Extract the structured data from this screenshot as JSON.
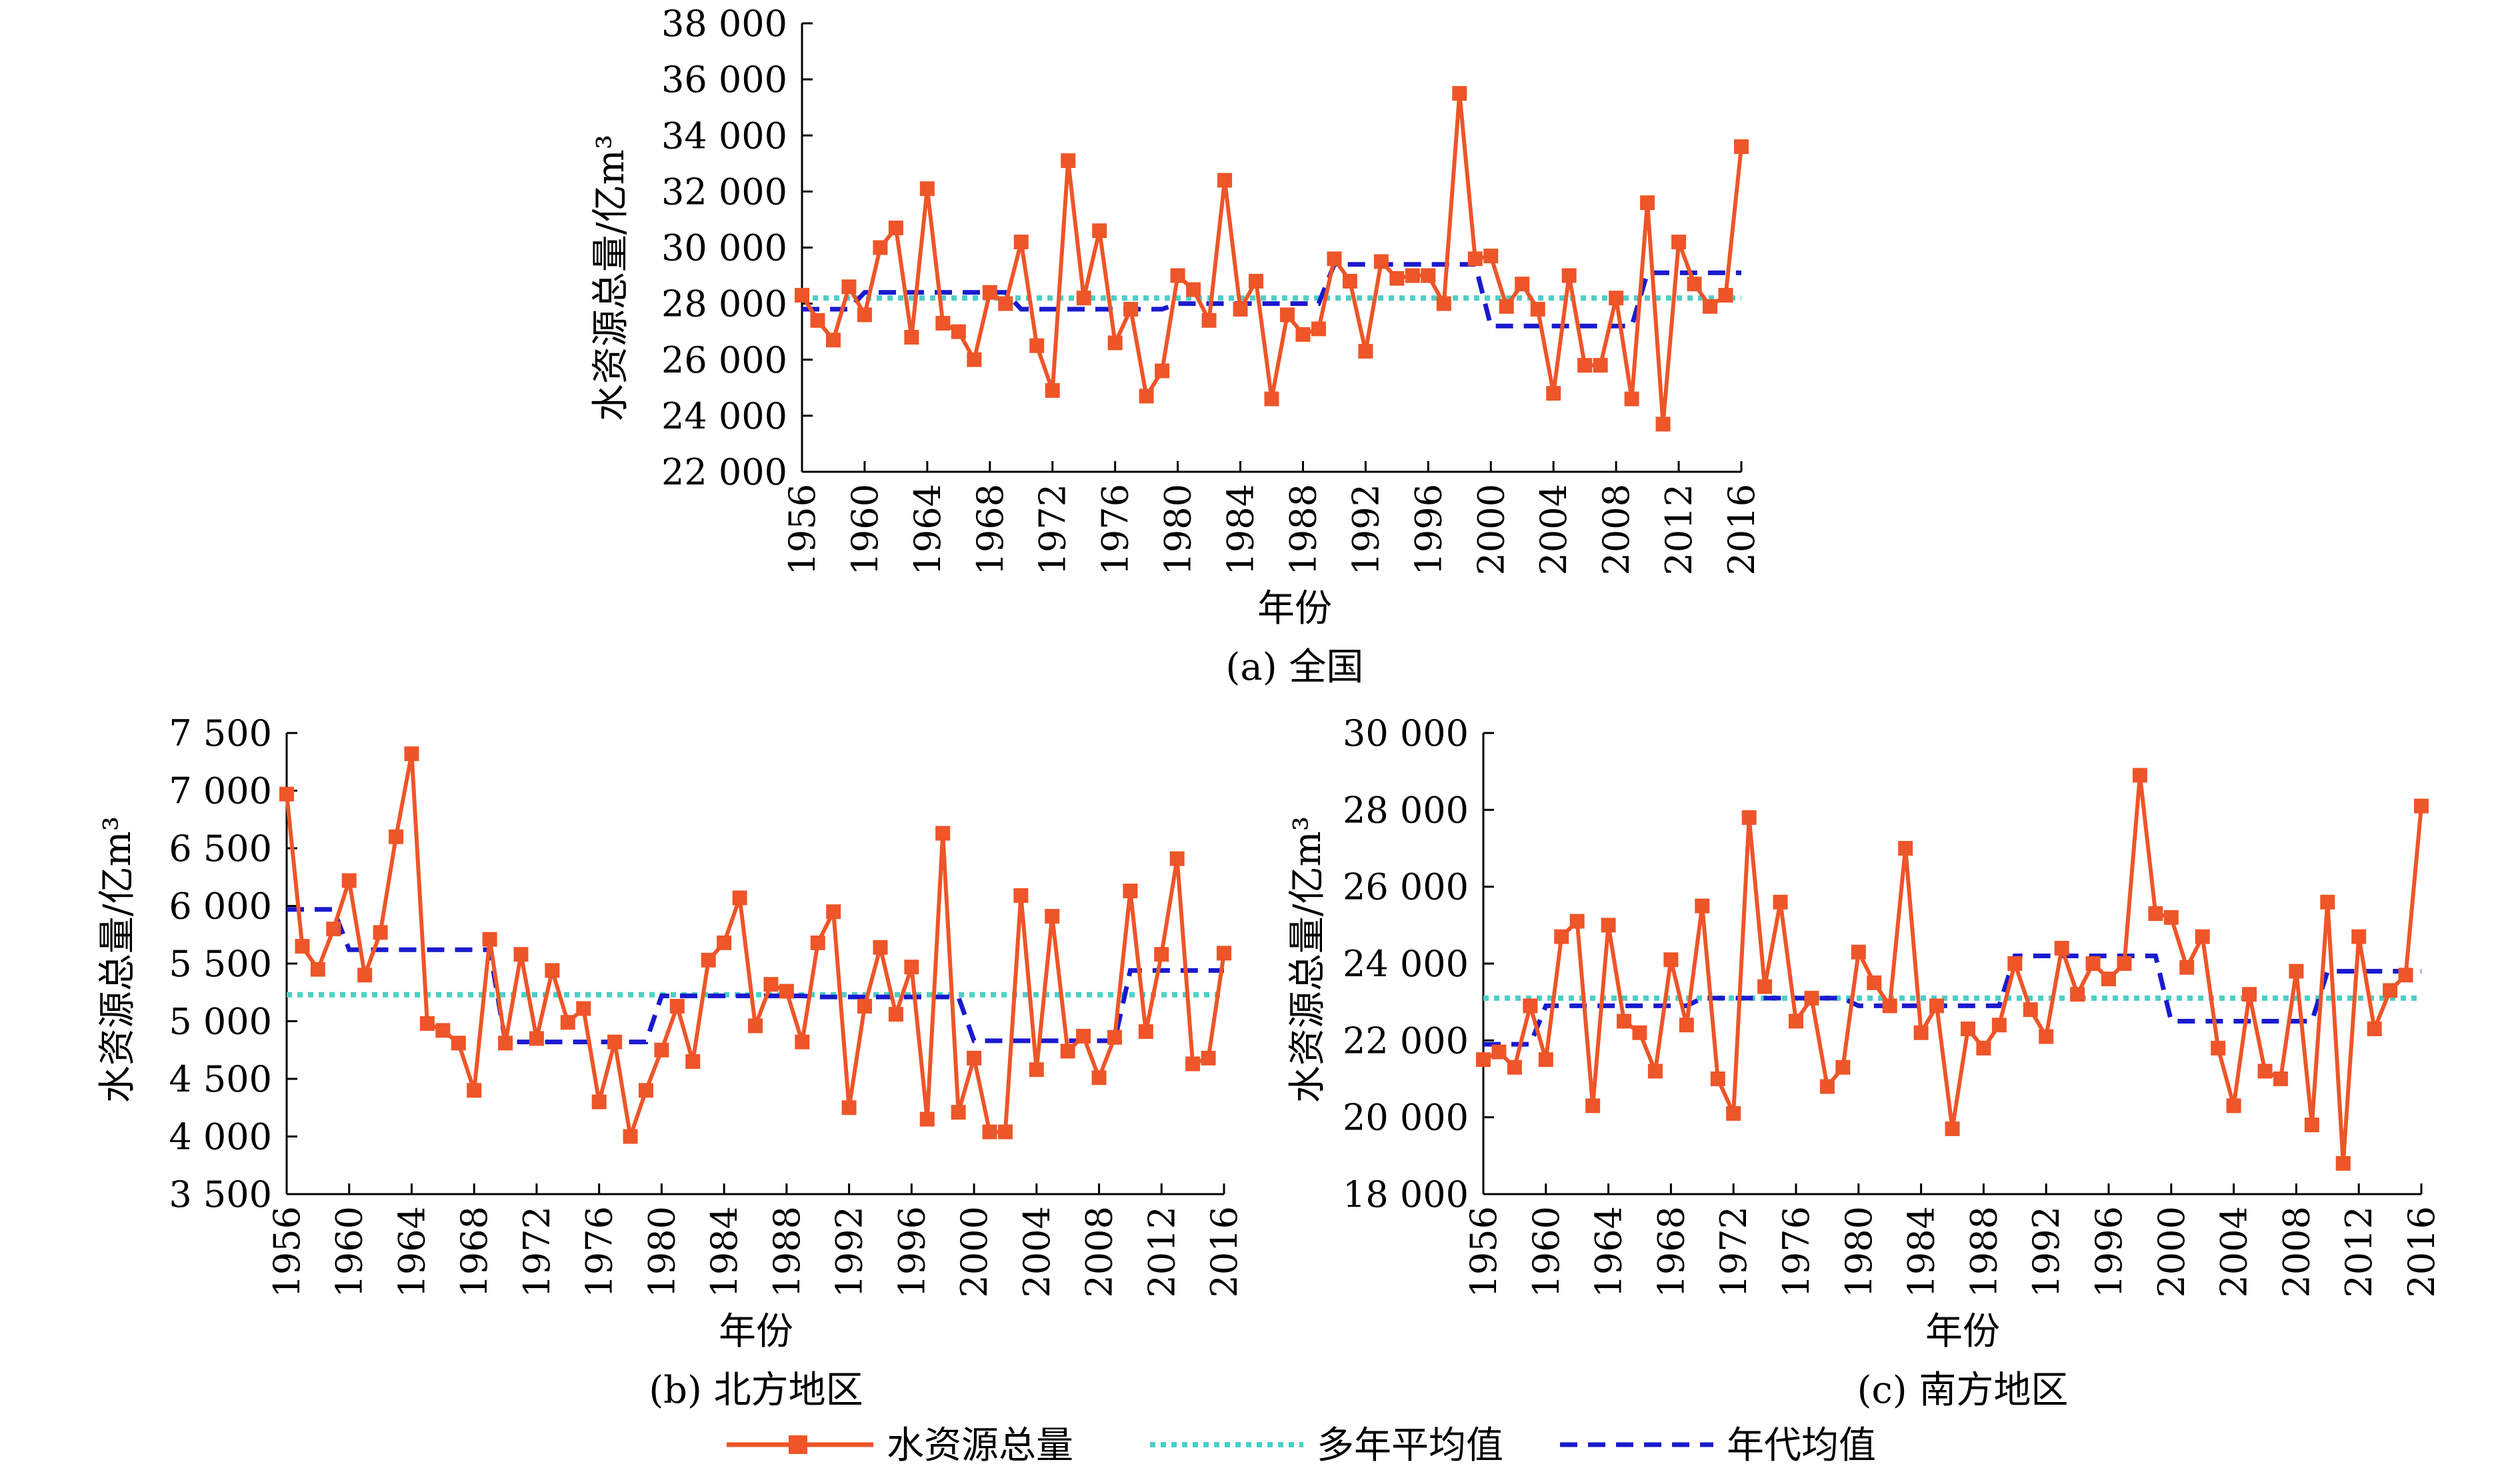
{
  "figure": {
    "legend": {
      "items": [
        {
          "label": "水资源总量",
          "color": "#EE5528",
          "style": "solid-square-markers"
        },
        {
          "label": "多年平均值",
          "color": "#4BCFC6",
          "style": "dotted"
        },
        {
          "label": "年代均值",
          "color": "#1A1ACF",
          "style": "dashed"
        }
      ]
    }
  },
  "chart_data": [
    {
      "type": "line",
      "caption": "(a) 全国",
      "xlabel": "年份",
      "ylabel": "水资源总量/亿m³",
      "xlim": [
        1956,
        2016
      ],
      "ylim": [
        22000,
        38000
      ],
      "yticks": [
        22000,
        24000,
        26000,
        28000,
        30000,
        32000,
        34000,
        36000,
        38000
      ],
      "ytick_labels": [
        "22 000",
        "24 000",
        "26 000",
        "28 000",
        "30 000",
        "32 000",
        "34 000",
        "36 000",
        "38 000"
      ],
      "xticks": [
        1956,
        1960,
        1964,
        1968,
        1972,
        1976,
        1980,
        1984,
        1988,
        1992,
        1996,
        2000,
        2004,
        2008,
        2012,
        2016
      ],
      "xtick_labels": [
        "1956",
        "1960",
        "1964",
        "1968",
        "1972",
        "1976",
        "1980",
        "1984",
        "1988",
        "1992",
        "1996",
        "2000",
        "2004",
        "2008",
        "2012",
        "2016"
      ],
      "series": [
        {
          "name": "水资源总量",
          "x_start": 1956,
          "values": [
            28300,
            27400,
            26700,
            28600,
            27600,
            30000,
            30700,
            26800,
            32100,
            27300,
            27000,
            26000,
            28400,
            28000,
            30200,
            26500,
            24900,
            33100,
            28200,
            30600,
            26600,
            27800,
            24700,
            25600,
            29000,
            28500,
            27400,
            32400,
            27800,
            28800,
            24600,
            27600,
            26900,
            27100,
            29600,
            28800,
            26300,
            29500,
            28900,
            29000,
            29000,
            28000,
            35500,
            29600,
            29700,
            27900,
            28700,
            27800,
            24800,
            29000,
            25800,
            25800,
            28200,
            24600,
            31600,
            23700,
            30200,
            28700,
            27900,
            28300,
            33600
          ]
        },
        {
          "name": "多年平均值",
          "value": 28200
        },
        {
          "name": "年代均值",
          "segments": [
            {
              "x": [
                1956,
                1959
              ],
              "value": 27800
            },
            {
              "x": [
                1960,
                1969
              ],
              "value": 28400
            },
            {
              "x": [
                1970,
                1979
              ],
              "value": 27800
            },
            {
              "x": [
                1980,
                1989
              ],
              "value": 28000
            },
            {
              "x": [
                1990,
                1999
              ],
              "value": 29400
            },
            {
              "x": [
                2000,
                2009
              ],
              "value": 27200
            },
            {
              "x": [
                2010,
                2016
              ],
              "value": 29100
            }
          ]
        }
      ]
    },
    {
      "type": "line",
      "caption": "(b) 北方地区",
      "xlabel": "年份",
      "ylabel": "水资源总量/亿m³",
      "xlim": [
        1956,
        2016
      ],
      "ylim": [
        3500,
        7500
      ],
      "yticks": [
        3500,
        4000,
        4500,
        5000,
        5500,
        6000,
        6500,
        7000,
        7500
      ],
      "ytick_labels": [
        "3 500",
        "4 000",
        "4 500",
        "5 000",
        "5 500",
        "6 000",
        "6 500",
        "7 000",
        "7 500"
      ],
      "xticks": [
        1956,
        1960,
        1964,
        1968,
        1972,
        1976,
        1980,
        1984,
        1988,
        1992,
        1996,
        2000,
        2004,
        2008,
        2012,
        2016
      ],
      "xtick_labels": [
        "1956",
        "1960",
        "1964",
        "1968",
        "1972",
        "1976",
        "1980",
        "1984",
        "1988",
        "1992",
        "1996",
        "2000",
        "2004",
        "2008",
        "2012",
        "2016"
      ],
      "series": [
        {
          "name": "水资源总量",
          "x_start": 1956,
          "values": [
            6970,
            5650,
            5450,
            5800,
            6220,
            5400,
            5770,
            6600,
            7320,
            4980,
            4920,
            4810,
            4400,
            5710,
            4810,
            5580,
            4850,
            5440,
            4990,
            5110,
            4300,
            4820,
            4000,
            4400,
            4750,
            5130,
            4650,
            5530,
            5680,
            6070,
            4960,
            5320,
            5260,
            4820,
            5680,
            5950,
            4250,
            5130,
            5640,
            5060,
            5470,
            4150,
            6630,
            4210,
            4680,
            4040,
            4040,
            6090,
            4580,
            5910,
            4740,
            4870,
            4510,
            4860,
            6130,
            4910,
            5580,
            6410,
            4630,
            4680,
            5590
          ]
        },
        {
          "name": "多年平均值",
          "value": 5230
        },
        {
          "name": "年代均值",
          "segments": [
            {
              "x": [
                1956,
                1959
              ],
              "value": 5970
            },
            {
              "x": [
                1960,
                1969
              ],
              "value": 5620
            },
            {
              "x": [
                1970,
                1979
              ],
              "value": 4820
            },
            {
              "x": [
                1980,
                1989
              ],
              "value": 5220
            },
            {
              "x": [
                1990,
                1999
              ],
              "value": 5210
            },
            {
              "x": [
                2000,
                2009
              ],
              "value": 4830
            },
            {
              "x": [
                2010,
                2016
              ],
              "value": 5440
            }
          ]
        }
      ]
    },
    {
      "type": "line",
      "caption": "(c) 南方地区",
      "xlabel": "年份",
      "ylabel": "水资源总量/亿m³",
      "xlim": [
        1956,
        2016
      ],
      "ylim": [
        18000,
        30000
      ],
      "yticks": [
        18000,
        20000,
        22000,
        24000,
        26000,
        28000,
        30000
      ],
      "ytick_labels": [
        "18 000",
        "20 000",
        "22 000",
        "24 000",
        "26 000",
        "28 000",
        "30 000"
      ],
      "xticks": [
        1956,
        1960,
        1964,
        1968,
        1972,
        1976,
        1980,
        1984,
        1988,
        1992,
        1996,
        2000,
        2004,
        2008,
        2012,
        2016
      ],
      "xtick_labels": [
        "1956",
        "1960",
        "1964",
        "1968",
        "1972",
        "1976",
        "1980",
        "1984",
        "1988",
        "1992",
        "1996",
        "2000",
        "2004",
        "2008",
        "2012",
        "2016"
      ],
      "series": [
        {
          "name": "水资源总量",
          "x_start": 1956,
          "values": [
            21500,
            21700,
            21300,
            22900,
            21500,
            24700,
            25100,
            20300,
            25000,
            22500,
            22200,
            21200,
            24100,
            22400,
            25500,
            21000,
            20100,
            27800,
            23400,
            25600,
            22500,
            23100,
            20800,
            21300,
            24300,
            23500,
            22900,
            27000,
            22200,
            22900,
            19700,
            22300,
            21800,
            22400,
            24000,
            22800,
            22100,
            24400,
            23200,
            24000,
            23600,
            24000,
            28900,
            25300,
            25200,
            23900,
            24700,
            21800,
            20300,
            23200,
            21200,
            21000,
            23800,
            19800,
            25600,
            18800,
            24700,
            22300,
            23300,
            23700,
            28100
          ]
        },
        {
          "name": "多年平均值",
          "value": 23100
        },
        {
          "name": "年代均值",
          "segments": [
            {
              "x": [
                1956,
                1959
              ],
              "value": 21900
            },
            {
              "x": [
                1960,
                1969
              ],
              "value": 22900
            },
            {
              "x": [
                1970,
                1979
              ],
              "value": 23100
            },
            {
              "x": [
                1980,
                1989
              ],
              "value": 22900
            },
            {
              "x": [
                1990,
                1999
              ],
              "value": 24200
            },
            {
              "x": [
                2000,
                2009
              ],
              "value": 22500
            },
            {
              "x": [
                2010,
                2016
              ],
              "value": 23800
            }
          ]
        }
      ]
    }
  ]
}
